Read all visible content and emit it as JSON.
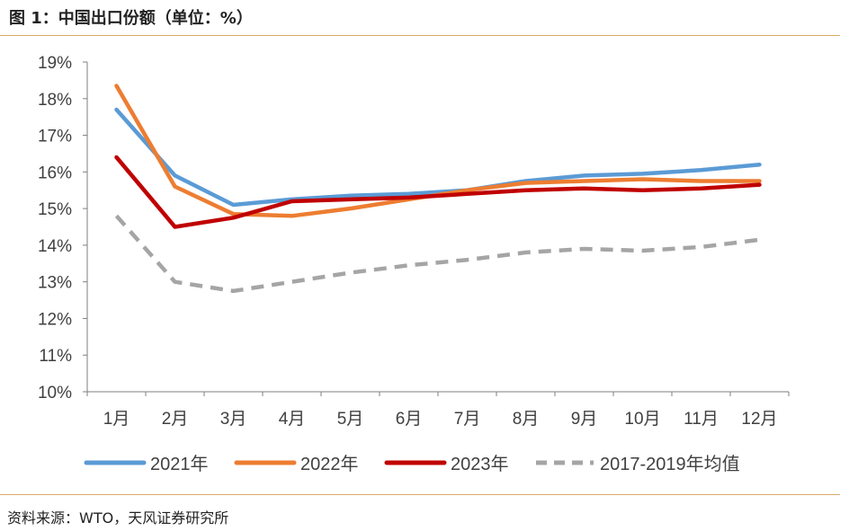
{
  "title": "图 1：中国出口份额（单位：%）",
  "source": "资料来源：WTO，天风证券研究所",
  "chart_data": {
    "type": "line",
    "title": "图 1：中国出口份额（单位：%）",
    "xlabel": "",
    "ylabel": "",
    "categories": [
      "1月",
      "2月",
      "3月",
      "4月",
      "5月",
      "6月",
      "7月",
      "8月",
      "9月",
      "10月",
      "11月",
      "12月"
    ],
    "ylim": [
      10,
      19
    ],
    "yticks": [
      10,
      11,
      12,
      13,
      14,
      15,
      16,
      17,
      18,
      19
    ],
    "ytick_labels": [
      "10%",
      "11%",
      "12%",
      "13%",
      "14%",
      "15%",
      "16%",
      "17%",
      "18%",
      "19%"
    ],
    "legend_position": "bottom",
    "series": [
      {
        "name": "2021年",
        "color": "#5b9bd5",
        "dashed": false,
        "values": [
          17.7,
          15.9,
          15.1,
          15.25,
          15.35,
          15.4,
          15.5,
          15.75,
          15.9,
          15.95,
          16.05,
          16.2
        ]
      },
      {
        "name": "2022年",
        "color": "#ed7d31",
        "dashed": false,
        "values": [
          18.35,
          15.6,
          14.85,
          14.8,
          15.0,
          15.25,
          15.5,
          15.7,
          15.75,
          15.8,
          15.75,
          15.75
        ]
      },
      {
        "name": "2023年",
        "color": "#c00000",
        "dashed": false,
        "values": [
          16.4,
          14.5,
          14.75,
          15.2,
          15.25,
          15.3,
          15.4,
          15.5,
          15.55,
          15.5,
          15.55,
          15.65
        ]
      },
      {
        "name": "2017-2019年均值",
        "color": "#a5a5a5",
        "dashed": true,
        "values": [
          14.8,
          13.0,
          12.75,
          13.0,
          13.25,
          13.45,
          13.6,
          13.8,
          13.9,
          13.85,
          13.95,
          14.15
        ]
      }
    ]
  }
}
